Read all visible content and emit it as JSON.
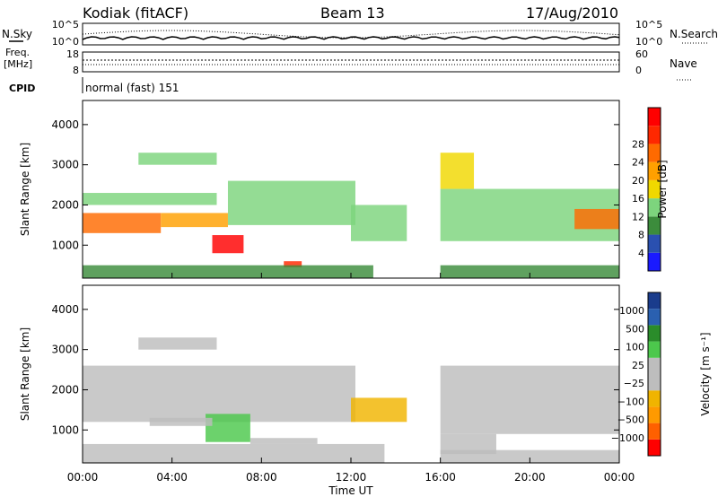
{
  "header": {
    "station": "Kodiak (fitACF)",
    "beam": "Beam 13",
    "date": "17/Aug/2010",
    "cpid_label": "CPID",
    "cpid_value": "normal (fast) 151"
  },
  "noise_panel": {
    "left_label": "N.Sky",
    "right_label": "N.Search",
    "left_ticks": [
      "10^5",
      "10^0"
    ],
    "right_ticks": [
      "10^5",
      "10^0"
    ]
  },
  "freq_panel": {
    "left_label_1": "Freq.",
    "left_label_2": "[MHz]",
    "right_label": "Nave",
    "left_ticks": [
      "18",
      "8"
    ],
    "right_ticks": [
      "60",
      "0"
    ]
  },
  "colors": {
    "power": [
      "#1a1aff",
      "#2a50b0",
      "#3c8c3c",
      "#7dd47d",
      "#f0d800",
      "#ffa000",
      "#ff6a00",
      "#ff2800",
      "#ff0000"
    ],
    "velocity": [
      "#ff0000",
      "#ff6000",
      "#ff9a00",
      "#f0b400",
      "#bdbdbd",
      "#bdbdbd",
      "#4cc84c",
      "#2a8c2a",
      "#2a60b0",
      "#1a3c8c"
    ]
  },
  "chart_data": [
    {
      "type": "heatmap",
      "title": "",
      "xlabel": "Time UT",
      "ylabel": "Slant Range [km]",
      "xlim": [
        "00:00",
        "24:00"
      ],
      "ylim": [
        180,
        4600
      ],
      "x_ticks": [
        "00:00",
        "04:00",
        "08:00",
        "12:00",
        "16:00",
        "20:00",
        "00:00"
      ],
      "y_ticks": [
        1000,
        2000,
        3000,
        4000
      ],
      "colorbar": {
        "label": "Power [dB]",
        "tick_labels": [
          "4",
          "8",
          "12",
          "16",
          "20",
          "24",
          "28"
        ],
        "range": [
          0,
          30
        ]
      },
      "regions": [
        {
          "t0": 0.0,
          "t1": 3.5,
          "r0": 1300,
          "r1": 1800,
          "value": 22
        },
        {
          "t0": 3.5,
          "t1": 6.5,
          "r0": 1450,
          "r1": 1800,
          "value": 18
        },
        {
          "t0": 5.8,
          "t1": 7.2,
          "r0": 800,
          "r1": 1250,
          "value": 29
        },
        {
          "t0": 9.0,
          "t1": 9.8,
          "r0": 450,
          "r1": 600,
          "value": 25
        },
        {
          "t0": 6.5,
          "t1": 12.2,
          "r0": 1500,
          "r1": 2600,
          "value": 12
        },
        {
          "t0": 2.5,
          "t1": 6.0,
          "r0": 3000,
          "r1": 3300,
          "value": 10
        },
        {
          "t0": 0.0,
          "t1": 6.0,
          "r0": 2000,
          "r1": 2300,
          "value": 10
        },
        {
          "t0": 0.0,
          "t1": 13.0,
          "r0": 180,
          "r1": 500,
          "value": 8
        },
        {
          "t0": 12.0,
          "t1": 14.5,
          "r0": 1100,
          "r1": 2000,
          "value": 10
        },
        {
          "t0": 16.0,
          "t1": 24.0,
          "r0": 1100,
          "r1": 2400,
          "value": 12
        },
        {
          "t0": 16.0,
          "t1": 24.0,
          "r0": 180,
          "r1": 500,
          "value": 8
        },
        {
          "t0": 16.0,
          "t1": 17.5,
          "r0": 2400,
          "r1": 3300,
          "value": 16
        },
        {
          "t0": 22.0,
          "t1": 24.0,
          "r0": 1400,
          "r1": 1900,
          "value": 20
        }
      ]
    },
    {
      "type": "heatmap",
      "title": "",
      "xlabel": "Time UT",
      "ylabel": "Slant Range [km]",
      "xlim": [
        "00:00",
        "24:00"
      ],
      "ylim": [
        180,
        4600
      ],
      "x_ticks": [
        "00:00",
        "04:00",
        "08:00",
        "12:00",
        "16:00",
        "20:00",
        "00:00"
      ],
      "y_ticks": [
        1000,
        2000,
        3000,
        4000
      ],
      "colorbar": {
        "label": "Velocity [m s⁻¹]",
        "tick_labels": [
          "1000",
          "500",
          "100",
          "25",
          "−25",
          "−100",
          "−500",
          "−1000"
        ],
        "range": [
          -1000,
          1000
        ]
      },
      "regions": [
        {
          "t0": 0.0,
          "t1": 12.2,
          "r0": 1200,
          "r1": 2600,
          "value": 0
        },
        {
          "t0": 2.5,
          "t1": 6.0,
          "r0": 3000,
          "r1": 3300,
          "value": 0
        },
        {
          "t0": 5.5,
          "t1": 7.5,
          "r0": 700,
          "r1": 1400,
          "value": 300
        },
        {
          "t0": 3.0,
          "t1": 5.8,
          "r0": 1100,
          "r1": 1300,
          "value": 150
        },
        {
          "t0": 7.5,
          "t1": 10.5,
          "r0": 650,
          "r1": 800,
          "value": 150
        },
        {
          "t0": 0.0,
          "t1": 13.5,
          "r0": 180,
          "r1": 650,
          "value": -60
        },
        {
          "t0": 12.0,
          "t1": 14.5,
          "r0": 1200,
          "r1": 1800,
          "value": -300
        },
        {
          "t0": 16.0,
          "t1": 18.5,
          "r0": 400,
          "r1": 900,
          "value": -150
        },
        {
          "t0": 16.0,
          "t1": 24.0,
          "r0": 900,
          "r1": 2600,
          "value": 0
        },
        {
          "t0": 16.0,
          "t1": 24.0,
          "r0": 180,
          "r1": 500,
          "value": 0
        }
      ]
    }
  ]
}
